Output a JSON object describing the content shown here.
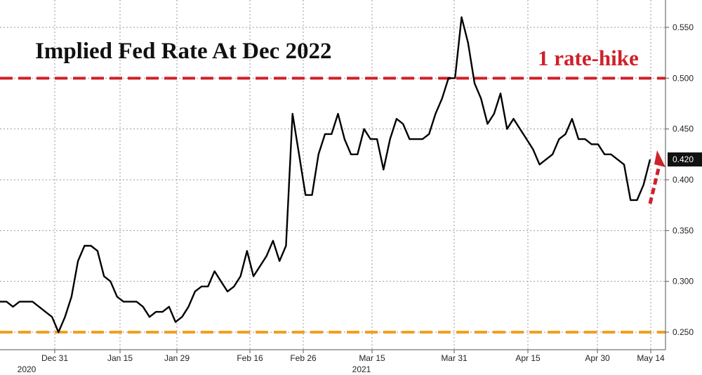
{
  "chart_data": {
    "type": "line",
    "title": "Implied Fed Rate At Dec 2022",
    "xlabel": "",
    "ylabel": "",
    "ylim": [
      0.245,
      0.58
    ],
    "y_ticks": [
      "0.250",
      "0.300",
      "0.350",
      "0.400",
      "0.450",
      "0.500",
      "0.550"
    ],
    "x_tick_labels": [
      "Dec 31",
      "Jan 15",
      "Jan 29",
      "Feb 16",
      "Feb 26",
      "Mar 15",
      "Mar 31",
      "Apr 15",
      "Apr 30",
      "May 14"
    ],
    "year_labels": [
      "2020",
      "2021"
    ],
    "last_value_label": "0.420",
    "grid": true,
    "annotations": {
      "rate_hike_label": "1 rate-hike",
      "rate_hike_level": 0.5,
      "baseline_level": 0.25
    },
    "colors": {
      "series": "#000000",
      "rate_hike_line": "#d0202a",
      "baseline_line": "#f0a020",
      "badge": "#111111",
      "arrow": "#d0202a"
    },
    "series": [
      {
        "values": [
          0.28,
          0.28,
          0.275,
          0.28,
          0.28,
          0.28,
          0.275,
          0.27,
          0.265,
          0.25,
          0.265,
          0.285,
          0.32,
          0.335,
          0.335,
          0.33,
          0.305,
          0.3,
          0.285,
          0.28,
          0.28,
          0.28,
          0.275,
          0.265,
          0.27,
          0.27,
          0.275,
          0.26,
          0.265,
          0.275,
          0.29,
          0.295,
          0.295,
          0.31,
          0.3,
          0.29,
          0.295,
          0.305,
          0.33,
          0.305,
          0.315,
          0.325,
          0.34,
          0.32,
          0.335,
          0.465,
          0.425,
          0.385,
          0.385,
          0.425,
          0.445,
          0.445,
          0.465,
          0.44,
          0.425,
          0.425,
          0.45,
          0.44,
          0.44,
          0.41,
          0.44,
          0.46,
          0.455,
          0.44,
          0.44,
          0.44,
          0.445,
          0.465,
          0.48,
          0.5,
          0.5,
          0.56,
          0.535,
          0.495,
          0.48,
          0.455,
          0.465,
          0.485,
          0.45,
          0.46,
          0.45,
          0.44,
          0.43,
          0.415,
          0.42,
          0.425,
          0.44,
          0.445,
          0.46,
          0.44,
          0.44,
          0.435,
          0.435,
          0.425,
          0.425,
          0.42,
          0.415,
          0.38,
          0.38,
          0.395,
          0.42
        ]
      }
    ]
  }
}
